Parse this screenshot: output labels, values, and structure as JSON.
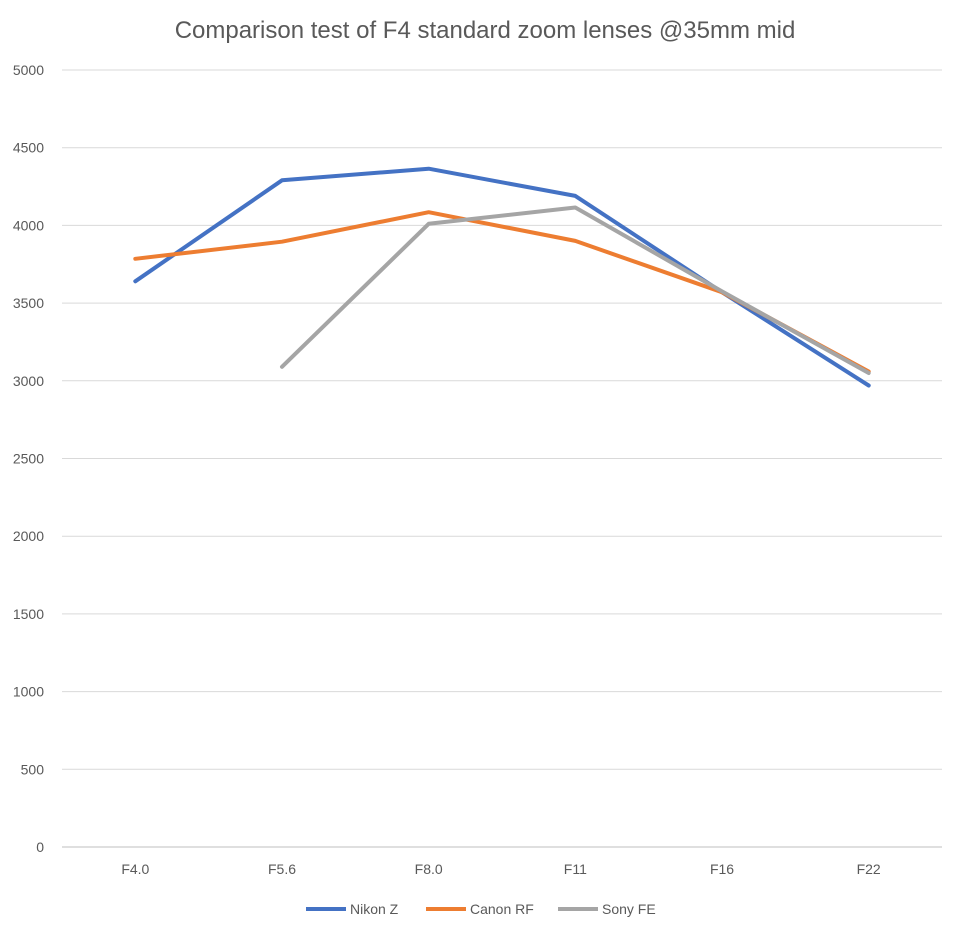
{
  "chart_data": {
    "type": "line",
    "title": "Comparison test of F4 standard zoom lenses @35mm mid",
    "xlabel": "",
    "ylabel": "",
    "categories": [
      "F4.0",
      "F5.6",
      "F8.0",
      "F11",
      "F16",
      "F22"
    ],
    "ylim": [
      0,
      5000
    ],
    "yticks": [
      "0",
      "500",
      "1000",
      "1500",
      "2000",
      "2500",
      "3000",
      "3500",
      "4000",
      "4500",
      "5000"
    ],
    "grid": true,
    "legend_position": "bottom",
    "series": [
      {
        "name": "Nikon Z",
        "color": "#4472C4",
        "values": [
          3640,
          4290,
          4365,
          4190,
          3570,
          2970
        ]
      },
      {
        "name": "Canon RF",
        "color": "#ED7D31",
        "values": [
          3785,
          3895,
          4085,
          3900,
          3570,
          3060
        ]
      },
      {
        "name": "Sony FE",
        "color": "#A5A5A5",
        "values": [
          null,
          3090,
          4010,
          4115,
          3575,
          3050
        ]
      }
    ]
  }
}
